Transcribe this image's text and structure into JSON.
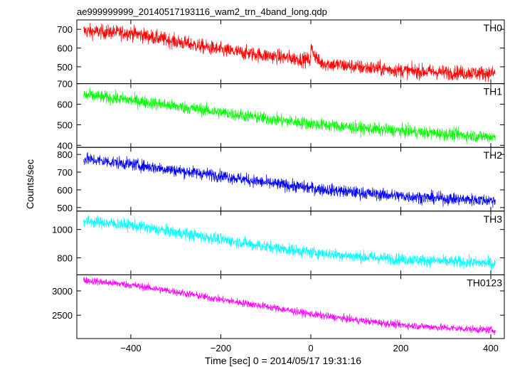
{
  "chart_data": {
    "type": "line",
    "title": "ae999999999_20140517193116_wam2_trn_4band_long.qdp",
    "xlabel": "Time [sec] 0 = 2014/05/17 19:31:16",
    "ylabel": "Counts/sec",
    "xlim": [
      -520,
      430
    ],
    "x_ticks": [
      -400,
      -200,
      0,
      200,
      400
    ],
    "x_tick_labels": [
      "−400",
      "−200",
      "0",
      "200",
      "400"
    ],
    "x_range": [
      -505,
      410
    ],
    "grid": false,
    "panels": [
      {
        "name": "TH0",
        "color": "#ff0000",
        "ylim": [
          410,
          750
        ],
        "y_ticks": [
          500,
          600,
          700
        ],
        "y_tick_labels": [
          "500",
          "600",
          "700"
        ],
        "trend": [
          [
            -505,
            690
          ],
          [
            -400,
            680
          ],
          [
            -300,
            635
          ],
          [
            -200,
            590
          ],
          [
            -100,
            560
          ],
          [
            -1,
            535
          ],
          [
            0,
            600
          ],
          [
            20,
            520
          ],
          [
            100,
            500
          ],
          [
            200,
            480
          ],
          [
            300,
            470
          ],
          [
            410,
            465
          ]
        ],
        "noise": 28
      },
      {
        "name": "TH1",
        "color": "#00ff00",
        "ylim": [
          390,
          700
        ],
        "y_ticks": [
          400,
          500,
          600,
          700
        ],
        "y_tick_labels": [
          "400",
          "500",
          "600",
          "700"
        ],
        "trend": [
          [
            -505,
            645
          ],
          [
            -400,
            620
          ],
          [
            -300,
            590
          ],
          [
            -200,
            560
          ],
          [
            -100,
            530
          ],
          [
            0,
            505
          ],
          [
            100,
            485
          ],
          [
            200,
            470
          ],
          [
            300,
            455
          ],
          [
            410,
            440
          ]
        ],
        "noise": 22
      },
      {
        "name": "TH2",
        "color": "#0000ff",
        "ylim": [
          480,
          840
        ],
        "y_ticks": [
          500,
          600,
          700,
          800
        ],
        "y_tick_labels": [
          "500",
          "600",
          "700",
          "800"
        ],
        "trend": [
          [
            -505,
            775
          ],
          [
            -400,
            745
          ],
          [
            -300,
            710
          ],
          [
            -200,
            680
          ],
          [
            -100,
            640
          ],
          [
            0,
            610
          ],
          [
            100,
            585
          ],
          [
            200,
            565
          ],
          [
            300,
            550
          ],
          [
            410,
            540
          ]
        ],
        "noise": 25
      },
      {
        "name": "TH3",
        "color": "#00ffff",
        "ylim": [
          680,
          1130
        ],
        "y_ticks": [
          800,
          1000
        ],
        "y_tick_labels": [
          "800",
          "1000"
        ],
        "trend": [
          [
            -505,
            1060
          ],
          [
            -400,
            1030
          ],
          [
            -300,
            980
          ],
          [
            -200,
            930
          ],
          [
            -100,
            880
          ],
          [
            0,
            840
          ],
          [
            100,
            810
          ],
          [
            200,
            790
          ],
          [
            300,
            775
          ],
          [
            410,
            760
          ]
        ],
        "noise": 30
      },
      {
        "name": "TH0123",
        "color": "#ff00ff",
        "ylim": [
          2020,
          3330
        ],
        "y_ticks": [
          2500,
          3000
        ],
        "y_tick_labels": [
          "2500",
          "3000"
        ],
        "trend": [
          [
            -505,
            3220
          ],
          [
            -400,
            3120
          ],
          [
            -300,
            2980
          ],
          [
            -200,
            2820
          ],
          [
            -100,
            2680
          ],
          [
            0,
            2520
          ],
          [
            100,
            2400
          ],
          [
            200,
            2300
          ],
          [
            300,
            2240
          ],
          [
            410,
            2190
          ]
        ],
        "noise": 55
      }
    ]
  }
}
